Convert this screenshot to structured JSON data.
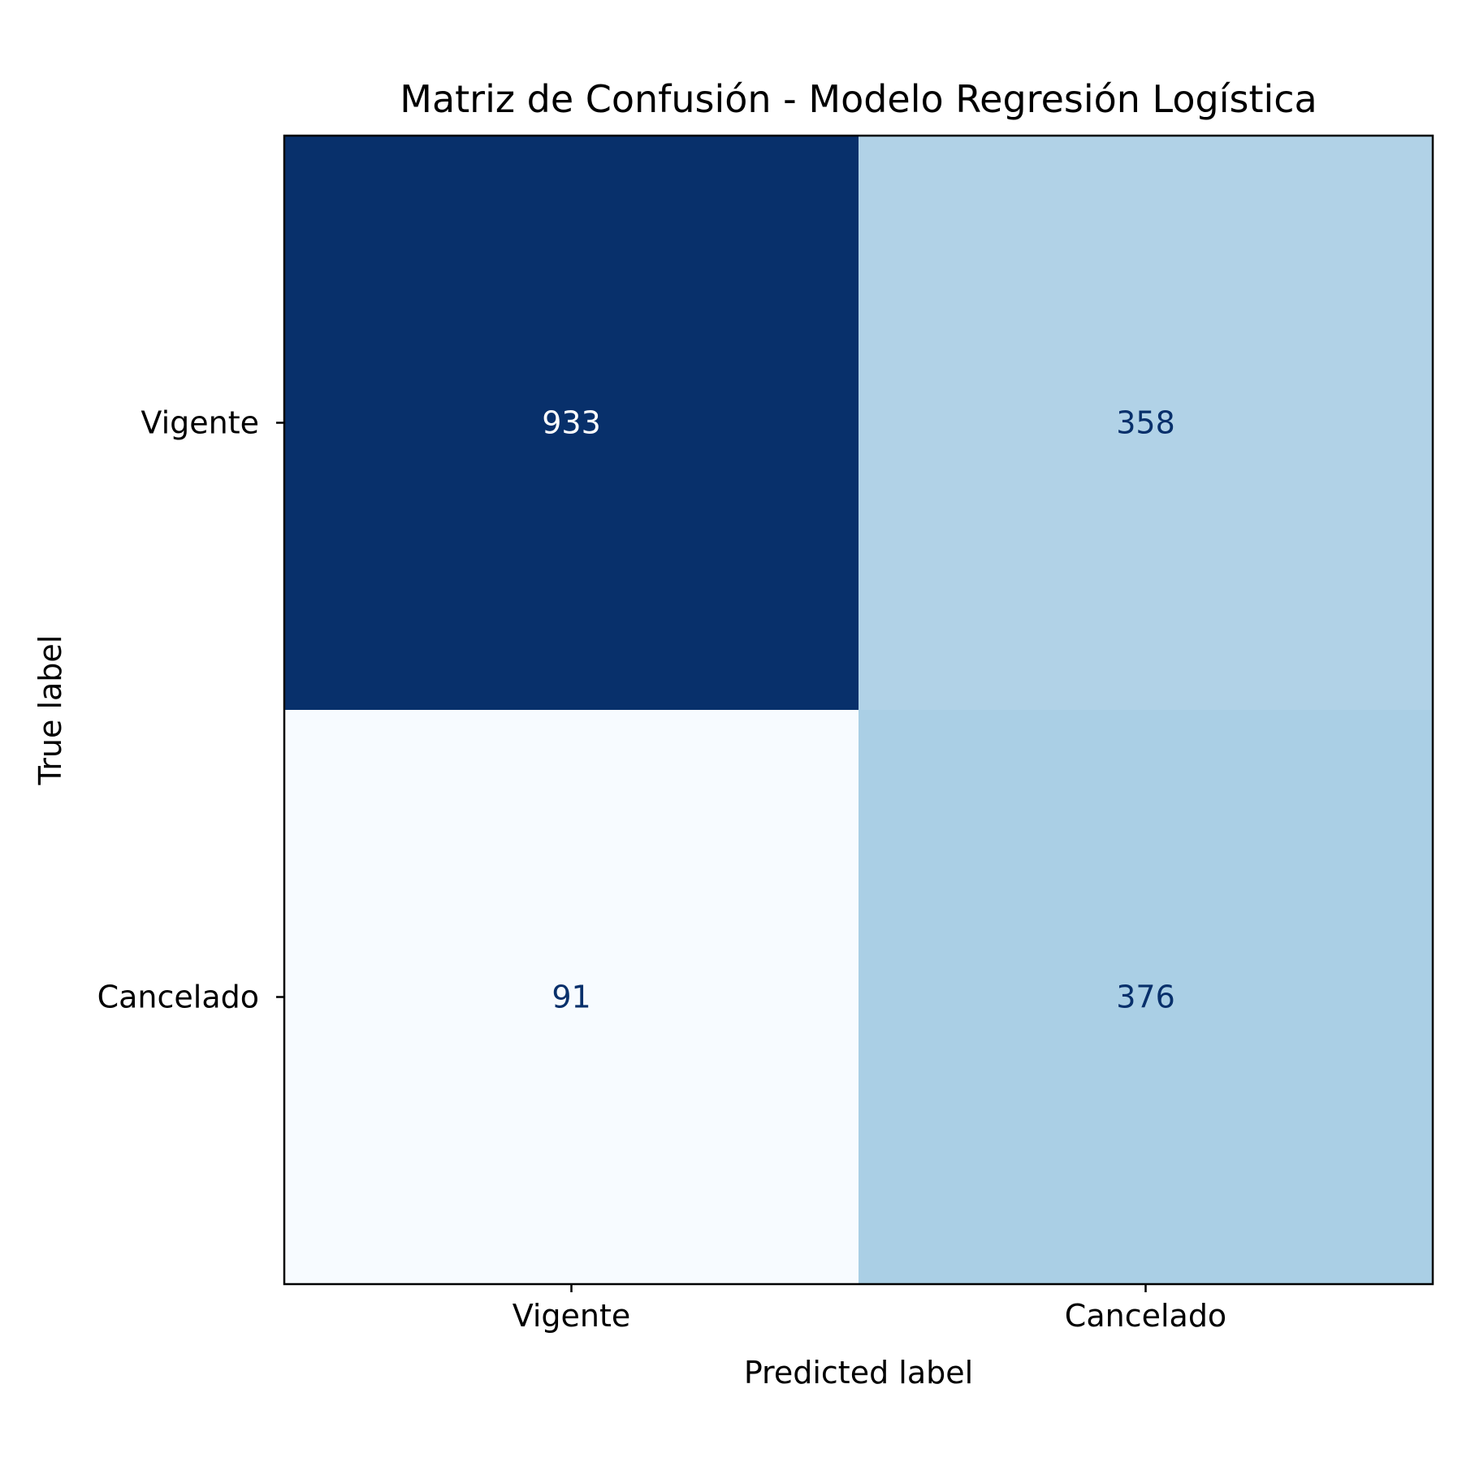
{
  "chart_data": {
    "type": "heatmap",
    "title": "Matriz de Confusión - Modelo Regresión Logística",
    "xlabel": "Predicted label",
    "ylabel": "True label",
    "x_categories": [
      "Vigente",
      "Cancelado"
    ],
    "y_categories": [
      "Vigente",
      "Cancelado"
    ],
    "values": [
      [
        933,
        358
      ],
      [
        91,
        376
      ]
    ],
    "colormap": "Blues",
    "colors": {
      "max_cell": "#08306b",
      "min_cell": "#f7fbff",
      "text_on_dark": "#ffffff",
      "text_on_light": "#08306b"
    },
    "colorbar": false
  }
}
